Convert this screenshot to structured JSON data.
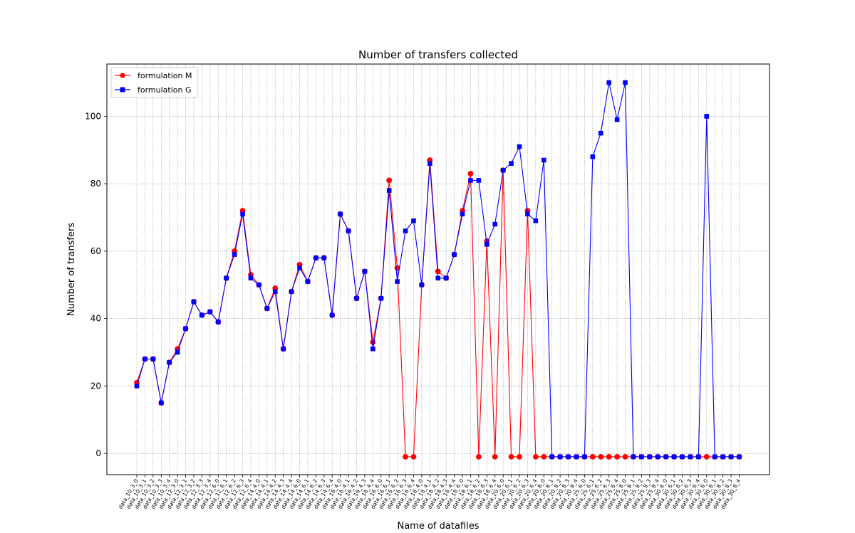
{
  "chart_data": {
    "type": "line",
    "title": "Number of transfers collected",
    "xlabel": "Name of datafiles",
    "ylabel": "Number of transfers",
    "ylim": [
      -6.3,
      115.5
    ],
    "yticks": [
      0,
      20,
      40,
      60,
      80,
      100
    ],
    "grid": true,
    "legend_position": "top-left",
    "categories": [
      "data_10_3_0",
      "data_10_3_1",
      "data_10_3_2",
      "data_10_3_3",
      "data_10_3_4",
      "data_12_3_0",
      "data_12_3_1",
      "data_12_3_2",
      "data_12_3_3",
      "data_12_3_4",
      "data_12_6_0",
      "data_12_6_1",
      "data_12_6_2",
      "data_12_6_3",
      "data_12_6_4",
      "data_14_4_0",
      "data_14_4_1",
      "data_14_4_2",
      "data_14_4_3",
      "data_14_4_4",
      "data_14_6_0",
      "data_14_6_1",
      "data_14_6_2",
      "data_14_6_3",
      "data_14_6_4",
      "data_16_4_0",
      "data_16_4_1",
      "data_16_4_2",
      "data_16_4_3",
      "data_16_4_4",
      "data_16_6_0",
      "data_16_6_1",
      "data_16_6_2",
      "data_16_6_3",
      "data_16_6_4",
      "data_18_4_0",
      "data_18_4_1",
      "data_18_4_2",
      "data_18_4_3",
      "data_18_4_4",
      "data_18_6_0",
      "data_18_6_1",
      "data_18_6_2",
      "data_18_6_3",
      "data_18_6_4",
      "data_20_6_0",
      "data_20_6_1",
      "data_20_6_2",
      "data_20_6_3",
      "data_20_6_4",
      "data_20_8_0",
      "data_20_8_1",
      "data_20_8_2",
      "data_20_8_3",
      "data_20_8_4",
      "data_25_6_0",
      "data_25_6_1",
      "data_25_6_2",
      "data_25_6_3",
      "data_25_6_4",
      "data_25_8_0",
      "data_25_8_1",
      "data_25_8_2",
      "data_25_8_3",
      "data_25_8_4",
      "data_30_6_0",
      "data_30_6_1",
      "data_30_6_2",
      "data_30_6_3",
      "data_30_6_4",
      "data_30_8_0",
      "data_30_8_1",
      "data_30_8_2",
      "data_30_8_3",
      "data_30_8_4"
    ],
    "series": [
      {
        "name": "formulation M",
        "color": "#ff0000",
        "marker": "circle",
        "values": [
          21,
          28,
          28,
          15,
          27,
          31,
          37,
          45,
          41,
          42,
          39,
          52,
          60,
          72,
          53,
          50,
          43,
          49,
          31,
          48,
          56,
          51,
          58,
          58,
          41,
          71,
          66,
          46,
          54,
          33,
          46,
          81,
          55,
          -1,
          -1,
          50,
          87,
          54,
          52,
          59,
          72,
          83,
          -1,
          63,
          -1,
          84,
          -1,
          -1,
          72,
          -1,
          -1,
          -1,
          -1,
          -1,
          -1,
          -1,
          -1,
          -1,
          -1,
          -1,
          -1,
          -1,
          -1,
          -1,
          -1,
          -1,
          -1,
          -1,
          -1,
          -1,
          -1,
          -1,
          -1,
          -1,
          -1
        ]
      },
      {
        "name": "formulation G",
        "color": "#0000ff",
        "marker": "square",
        "values": [
          20,
          28,
          28,
          15,
          27,
          30,
          37,
          45,
          41,
          42,
          39,
          52,
          59,
          71,
          52,
          50,
          43,
          48,
          31,
          48,
          55,
          51,
          58,
          58,
          41,
          71,
          66,
          46,
          54,
          31,
          46,
          78,
          51,
          66,
          69,
          50,
          86,
          52,
          52,
          59,
          71,
          81,
          81,
          62,
          68,
          84,
          86,
          91,
          71,
          69,
          87,
          -1,
          -1,
          -1,
          -1,
          -1,
          88,
          95,
          110,
          99,
          110,
          -1,
          -1,
          -1,
          -1,
          -1,
          -1,
          -1,
          -1,
          -1,
          100,
          -1,
          -1,
          -1,
          -1
        ]
      }
    ]
  }
}
